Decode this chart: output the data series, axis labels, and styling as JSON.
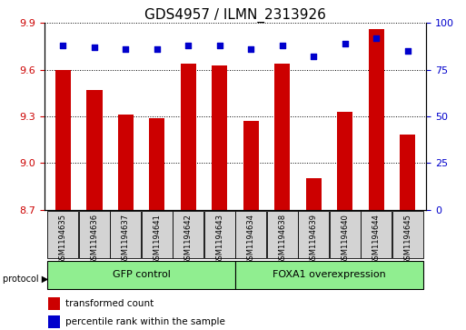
{
  "title": "GDS4957 / ILMN_2313926",
  "samples": [
    "GSM1194635",
    "GSM1194636",
    "GSM1194637",
    "GSM1194641",
    "GSM1194642",
    "GSM1194643",
    "GSM1194634",
    "GSM1194638",
    "GSM1194639",
    "GSM1194640",
    "GSM1194644",
    "GSM1194645"
  ],
  "transformed_count": [
    9.6,
    9.47,
    9.31,
    9.29,
    9.64,
    9.63,
    9.27,
    9.64,
    8.9,
    9.33,
    9.86,
    9.18
  ],
  "percentile_rank": [
    88,
    87,
    86,
    86,
    88,
    88,
    86,
    88,
    82,
    89,
    92,
    85
  ],
  "ylim_left": [
    8.7,
    9.9
  ],
  "ylim_right": [
    0,
    100
  ],
  "yticks_left": [
    8.7,
    9.0,
    9.3,
    9.6,
    9.9
  ],
  "yticks_right": [
    0,
    25,
    50,
    75,
    100
  ],
  "bar_color": "#cc0000",
  "dot_color": "#0000cc",
  "bar_width": 0.5,
  "group1_label": "GFP control",
  "group2_label": "FOXA1 overexpression",
  "group1_indices": [
    0,
    1,
    2,
    3,
    4,
    5
  ],
  "group2_indices": [
    6,
    7,
    8,
    9,
    10,
    11
  ],
  "legend_bar_label": "transformed count",
  "legend_dot_label": "percentile rank within the sample",
  "protocol_label": "protocol",
  "sample_box_color": "#d3d3d3",
  "group_bg_color": "#90ee90",
  "axis_bg": "#ffffff",
  "title_fontsize": 11,
  "tick_fontsize": 8,
  "label_fontsize": 6,
  "group_fontsize": 8,
  "legend_fontsize": 7.5
}
